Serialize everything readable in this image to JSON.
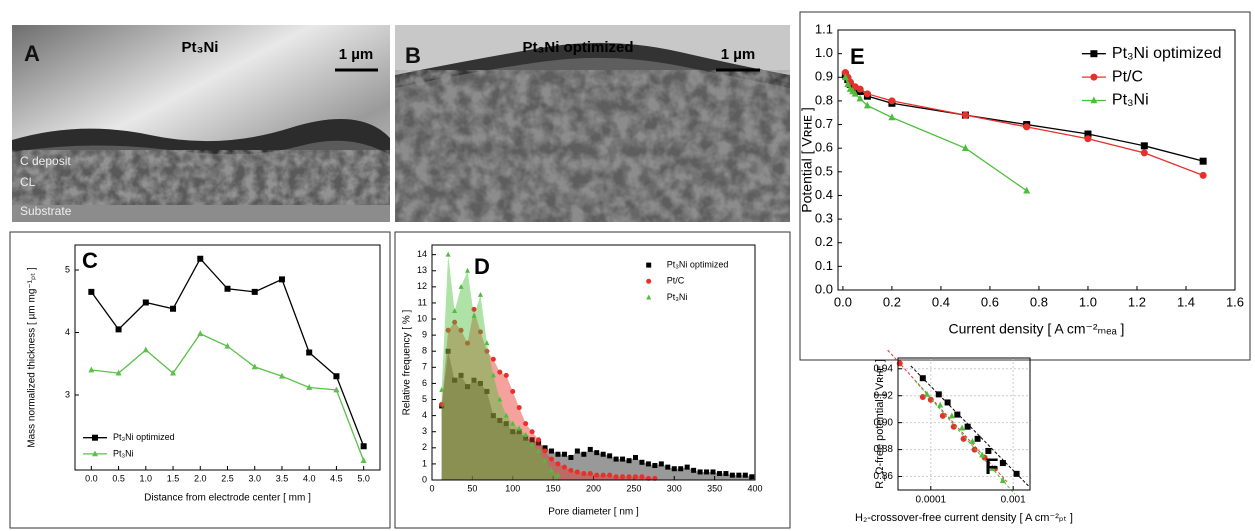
{
  "images": [
    {
      "label": "A",
      "title": "Pt₃Ni",
      "scale_bar": "1 µm",
      "annotations": [
        "C deposit",
        "CL",
        "Substrate"
      ]
    },
    {
      "label": "B",
      "title": "Pt₃Ni optimized",
      "scale_bar": "1 µm"
    }
  ],
  "chart_data": [
    {
      "type": "line",
      "label": "C",
      "x": [
        0,
        0.5,
        1,
        1.5,
        2,
        2.5,
        3,
        3.5,
        4,
        4.5,
        5
      ],
      "xlabel": "Distance from electrode center [ mm ]",
      "ylabel": "Mass normalized thickness [ µm mg⁻¹ₚₜ ]",
      "xlim": [
        -0.3,
        5.3
      ],
      "ylim": [
        1.8,
        5.4
      ],
      "xticks": [
        {
          "value": 0,
          "label": "0.0"
        },
        0.5,
        {
          "value": 1,
          "label": "1.0"
        },
        1.5,
        {
          "value": 2,
          "label": "2.0"
        },
        2.5,
        {
          "value": 3,
          "label": "3.0"
        },
        3.5,
        {
          "value": 4,
          "label": "4.0"
        },
        4.5,
        {
          "value": 5,
          "label": "5.0"
        }
      ],
      "yticks": [
        3,
        4,
        5
      ],
      "legend": "lower left",
      "series": [
        {
          "name": "Pt₃Ni optimized",
          "color": "#000000",
          "marker": "square",
          "values": [
            4.65,
            4.05,
            4.48,
            4.38,
            5.18,
            4.7,
            4.65,
            4.85,
            3.68,
            3.3,
            2.18
          ]
        },
        {
          "name": "Pt₃Ni",
          "color": "#5cc04a",
          "marker": "triangle",
          "values": [
            3.4,
            3.35,
            3.72,
            3.35,
            3.98,
            3.78,
            3.45,
            3.3,
            3.12,
            3.08,
            1.95
          ]
        }
      ]
    },
    {
      "type": "area",
      "label": "D",
      "x": [
        12,
        20,
        28,
        36,
        44,
        52,
        60,
        68,
        76,
        84,
        92,
        100,
        108,
        116,
        124,
        132,
        140,
        148,
        156,
        164,
        172,
        180,
        188,
        196,
        204,
        212,
        220,
        228,
        236,
        244,
        252,
        260,
        268,
        276,
        284,
        292,
        300,
        308,
        316,
        324,
        332,
        340,
        348,
        356,
        364,
        372,
        380,
        388,
        396
      ],
      "xlabel": "Pore diameter [ nm ]",
      "ylabel": "Relative frequency [ % ]",
      "xlim": [
        0,
        400
      ],
      "ylim": [
        0,
        14.6
      ],
      "xticks": [
        0,
        50,
        100,
        150,
        200,
        250,
        300,
        350,
        400
      ],
      "yticks": [
        0,
        1,
        2,
        3,
        4,
        5,
        6,
        7,
        8,
        9,
        10,
        11,
        12,
        13,
        14
      ],
      "legend": "upper right",
      "series": [
        {
          "name": "Pt₃Ni optimized",
          "color": "#000000",
          "marker": "square",
          "values": [
            4.6,
            8,
            6.2,
            6.5,
            5.8,
            6.2,
            6.0,
            5.5,
            4.0,
            3.7,
            3.5,
            3.0,
            3.0,
            2.6,
            2.5,
            2.3,
            2.0,
            1.8,
            1.6,
            1.6,
            1.4,
            1.8,
            1.6,
            1.9,
            1.7,
            1.6,
            1.5,
            1.3,
            1.3,
            1.2,
            1.4,
            1.1,
            1.0,
            0.9,
            1.0,
            0.8,
            0.7,
            0.7,
            0.8,
            0.6,
            0.5,
            0.5,
            0.5,
            0.4,
            0.4,
            0.3,
            0.3,
            0.3,
            0.2
          ]
        },
        {
          "name": "Pt/C",
          "color": "#e8302a",
          "marker": "circle",
          "values": [
            4.7,
            9.3,
            9.8,
            9.3,
            8.5,
            10.6,
            9.2,
            8.0,
            7.5,
            6.7,
            6.5,
            5.5,
            4.5,
            3.5,
            3.0,
            2.5,
            1.8,
            1.3,
            1.0,
            0.8,
            0.6,
            0.5,
            0.4,
            0.4,
            0.3,
            0.3,
            0.3,
            0.2,
            0.2,
            0.2,
            0.2,
            0.2,
            0.1,
            0.1,
            null,
            null,
            null,
            null,
            null,
            null,
            null,
            null,
            null,
            null,
            null,
            null,
            null,
            null,
            null
          ]
        },
        {
          "name": "Pt₃Ni",
          "color": "#4cbf3a",
          "marker": "triangle",
          "values": [
            5.6,
            14.0,
            10.5,
            12.0,
            13.0,
            10.2,
            11.5,
            8.5,
            6.5,
            5.0,
            4.0,
            3.5,
            3.2,
            2.8,
            2.2,
            1.8,
            1.2,
            0.6,
            0.3,
            null,
            null,
            null,
            null,
            null,
            null,
            null,
            null,
            null,
            null,
            null,
            null,
            null,
            null,
            null,
            null,
            null,
            null,
            null,
            null,
            null,
            null,
            null,
            null,
            null,
            null,
            null,
            null,
            null,
            null
          ]
        }
      ]
    },
    {
      "type": "line",
      "label": "E",
      "xlabel": "Current density [ A cm⁻²ₘₑₐ ]",
      "ylabel": "Potential [ Vʀʜᴇ ]",
      "xlim": [
        -0.02,
        1.6
      ],
      "ylim": [
        0,
        1.1
      ],
      "xticks": [
        {
          "value": 0,
          "label": "0.0"
        },
        0.2,
        0.4,
        0.6,
        0.8,
        {
          "value": 1,
          "label": "1.0"
        },
        1.2,
        1.4,
        1.6
      ],
      "yticks": [
        {
          "value": 0,
          "label": "0.0"
        },
        0.1,
        0.2,
        0.3,
        0.4,
        0.5,
        0.6,
        0.7,
        0.8,
        0.9,
        {
          "value": 1,
          "label": "1.0"
        },
        1.1
      ],
      "legend": "upper right",
      "series": [
        {
          "name": "Pt₃Ni optimized",
          "color": "#000000",
          "marker": "square",
          "x": [
            0.01,
            0.02,
            0.03,
            0.05,
            0.07,
            0.1,
            0.2,
            0.5,
            0.75,
            1.0,
            1.23,
            1.47
          ],
          "values": [
            0.91,
            0.89,
            0.87,
            0.85,
            0.84,
            0.82,
            0.79,
            0.74,
            0.7,
            0.66,
            0.61,
            0.545
          ]
        },
        {
          "name": "Pt/C",
          "color": "#e8302a",
          "marker": "circle",
          "x": [
            0.01,
            0.02,
            0.03,
            0.05,
            0.07,
            0.1,
            0.2,
            0.5,
            0.75,
            1.0,
            1.23,
            1.47
          ],
          "values": [
            0.92,
            0.9,
            0.88,
            0.86,
            0.85,
            0.83,
            0.8,
            0.74,
            0.69,
            0.64,
            0.58,
            0.485
          ]
        },
        {
          "name": "Pt₃Ni",
          "color": "#4cbf3a",
          "marker": "triangle",
          "x": [
            0.01,
            0.02,
            0.03,
            0.04,
            0.05,
            0.07,
            0.1,
            0.2,
            0.5,
            0.75
          ],
          "values": [
            0.9,
            0.87,
            0.85,
            0.84,
            0.83,
            0.81,
            0.78,
            0.73,
            0.6,
            0.42
          ]
        }
      ]
    },
    {
      "type": "scatter",
      "label": "F",
      "xlabel": "H₂-crossover-free current density [ A cm⁻²ₚₜ ]",
      "ylabel": "R_Ω-free potential [ Vʀʜᴇ ]",
      "log_x": true,
      "grid": true,
      "fit_lines": true,
      "xlim": [
        4e-05,
        0.0016
      ],
      "ylim": [
        0.85,
        0.948
      ],
      "xticks": [
        0.0001,
        0.001
      ],
      "yticks": [
        0.86,
        0.88,
        {
          "value": 0.9,
          "label": "0.90"
        },
        0.92,
        0.94
      ],
      "series": [
        {
          "color": "#000000",
          "marker": "square",
          "x": [
            8e-05,
            0.000125,
            0.00016,
            0.00021,
            0.00028,
            0.00037,
            0.0005,
            0.00075,
            0.0011
          ],
          "values": [
            0.933,
            0.921,
            0.915,
            0.906,
            0.897,
            0.888,
            0.879,
            0.87,
            0.862
          ]
        },
        {
          "color": "#e8302a",
          "marker": "circle",
          "x": [
            4.2e-05,
            8e-05,
            0.0001,
            0.00014,
            0.00019,
            0.00025,
            0.00034,
            0.00045,
            0.0006
          ],
          "values": [
            0.944,
            0.919,
            0.917,
            0.905,
            0.897,
            0.888,
            0.88,
            0.874,
            0.866
          ]
        },
        {
          "color": "#4cbf3a",
          "marker": "triangle",
          "x": [
            9e-05,
            0.00013,
            0.00018,
            0.00024,
            0.00032,
            0.00042,
            0.00056,
            0.00075
          ],
          "values": [
            0.921,
            0.913,
            0.905,
            0.896,
            0.886,
            0.876,
            0.866,
            0.857
          ]
        }
      ]
    }
  ]
}
